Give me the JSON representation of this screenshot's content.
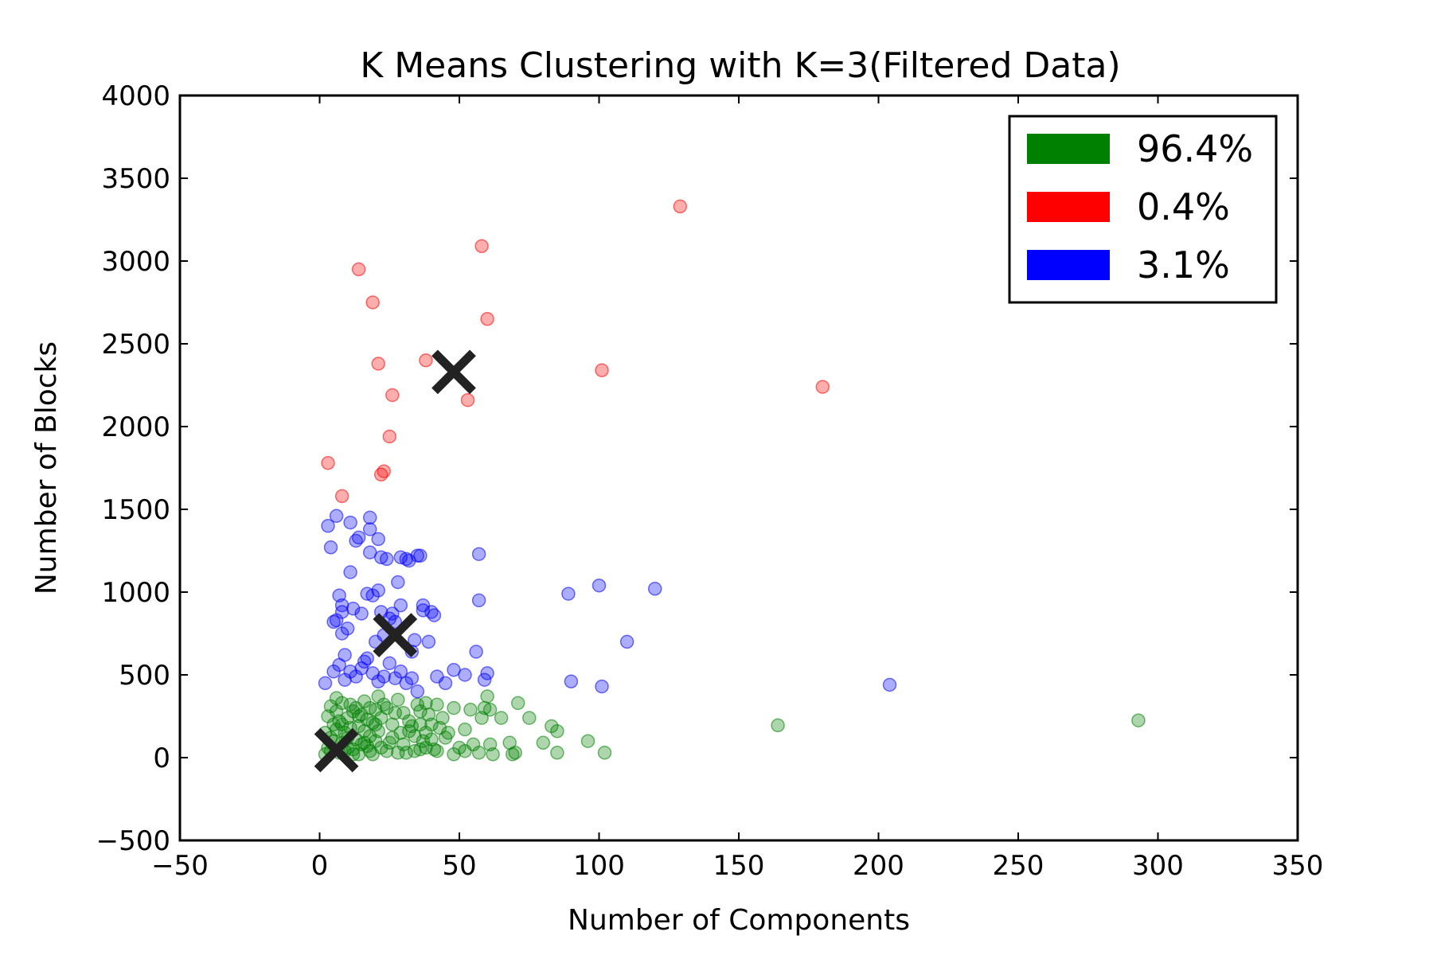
{
  "chart_data": {
    "type": "scatter",
    "title": "K Means Clustering with K=3(Filtered Data)",
    "xlabel": "Number of Components",
    "ylabel": "Number of Blocks",
    "xlim": [
      -50,
      350
    ],
    "ylim": [
      -500,
      4000
    ],
    "xticks": [
      -50,
      0,
      50,
      100,
      150,
      200,
      250,
      300,
      350
    ],
    "yticks": [
      -500,
      0,
      500,
      1000,
      1500,
      2000,
      2500,
      3000,
      3500,
      4000
    ],
    "xtick_labels": [
      "−50",
      "0",
      "50",
      "100",
      "150",
      "200",
      "250",
      "300",
      "350"
    ],
    "ytick_labels": [
      "−500",
      "0",
      "500",
      "1000",
      "1500",
      "2000",
      "2500",
      "3000",
      "3500",
      "4000"
    ],
    "grid": false,
    "legend_position": "top-right",
    "legend": [
      {
        "label": "96.4%",
        "color": "#008000"
      },
      {
        "label": "0.4%",
        "color": "#ff0000"
      },
      {
        "label": "3.1%",
        "color": "#0000ff"
      }
    ],
    "series": [
      {
        "color": "#008000",
        "points": [
          [
            2,
            20
          ],
          [
            3,
            60
          ],
          [
            4,
            120
          ],
          [
            5,
            200
          ],
          [
            6,
            280
          ],
          [
            7,
            30
          ],
          [
            8,
            90
          ],
          [
            9,
            150
          ],
          [
            10,
            240
          ],
          [
            11,
            320
          ],
          [
            12,
            50
          ],
          [
            13,
            110
          ],
          [
            14,
            190
          ],
          [
            15,
            260
          ],
          [
            16,
            340
          ],
          [
            17,
            70
          ],
          [
            18,
            130
          ],
          [
            19,
            210
          ],
          [
            20,
            290
          ],
          [
            21,
            370
          ],
          [
            3,
            250
          ],
          [
            4,
            310
          ],
          [
            6,
            170
          ],
          [
            8,
            330
          ],
          [
            10,
            60
          ],
          [
            12,
            280
          ],
          [
            14,
            20
          ],
          [
            16,
            160
          ],
          [
            18,
            300
          ],
          [
            20,
            100
          ],
          [
            22,
            240
          ],
          [
            24,
            40
          ],
          [
            26,
            200
          ],
          [
            28,
            350
          ],
          [
            30,
            80
          ],
          [
            32,
            220
          ],
          [
            34,
            130
          ],
          [
            36,
            280
          ],
          [
            38,
            60
          ],
          [
            40,
            200
          ],
          [
            5,
            100
          ],
          [
            7,
            220
          ],
          [
            9,
            40
          ],
          [
            11,
            180
          ],
          [
            13,
            300
          ],
          [
            15,
            80
          ],
          [
            17,
            230
          ],
          [
            19,
            20
          ],
          [
            21,
            160
          ],
          [
            23,
            320
          ],
          [
            25,
            90
          ],
          [
            27,
            270
          ],
          [
            29,
            150
          ],
          [
            31,
            30
          ],
          [
            33,
            190
          ],
          [
            35,
            320
          ],
          [
            37,
            100
          ],
          [
            39,
            260
          ],
          [
            41,
            50
          ],
          [
            43,
            180
          ],
          [
            2,
            150
          ],
          [
            4,
            40
          ],
          [
            6,
            360
          ],
          [
            8,
            200
          ],
          [
            10,
            120
          ],
          [
            12,
            20
          ],
          [
            14,
            250
          ],
          [
            16,
            90
          ],
          [
            18,
            40
          ],
          [
            20,
            200
          ],
          [
            22,
            60
          ],
          [
            24,
            300
          ],
          [
            26,
            120
          ],
          [
            28,
            30
          ],
          [
            30,
            270
          ],
          [
            32,
            160
          ],
          [
            34,
            40
          ],
          [
            36,
            200
          ],
          [
            38,
            330
          ],
          [
            40,
            110
          ],
          [
            42,
            40
          ],
          [
            44,
            240
          ],
          [
            46,
            150
          ],
          [
            48,
            300
          ],
          [
            50,
            60
          ],
          [
            52,
            170
          ],
          [
            54,
            290
          ],
          [
            55,
            80
          ],
          [
            57,
            30
          ],
          [
            58,
            240
          ],
          [
            59,
            300
          ],
          [
            60,
            370
          ],
          [
            61,
            290
          ],
          [
            62,
            20
          ],
          [
            61,
            80
          ],
          [
            65,
            240
          ],
          [
            68,
            90
          ],
          [
            69,
            20
          ],
          [
            70,
            30
          ],
          [
            71,
            330
          ],
          [
            75,
            240
          ],
          [
            80,
            90
          ],
          [
            83,
            190
          ],
          [
            85,
            160
          ],
          [
            85,
            30
          ],
          [
            96,
            100
          ],
          [
            102,
            30
          ],
          [
            164,
            195
          ],
          [
            293,
            225
          ],
          [
            48,
            20
          ],
          [
            52,
            40
          ],
          [
            45,
            120
          ],
          [
            42,
            320
          ],
          [
            38,
            150
          ],
          [
            36,
            50
          ]
        ]
      },
      {
        "color": "#ff0000",
        "points": [
          [
            3,
            1780
          ],
          [
            8,
            1580
          ],
          [
            14,
            2950
          ],
          [
            19,
            2750
          ],
          [
            21,
            2380
          ],
          [
            22,
            1710
          ],
          [
            23,
            1730
          ],
          [
            25,
            1940
          ],
          [
            26,
            2190
          ],
          [
            38,
            2400
          ],
          [
            53,
            2160
          ],
          [
            58,
            3090
          ],
          [
            60,
            2650
          ],
          [
            101,
            2340
          ],
          [
            129,
            3330
          ],
          [
            180,
            2240
          ]
        ]
      },
      {
        "color": "#0000ff",
        "points": [
          [
            2,
            450
          ],
          [
            3,
            1400
          ],
          [
            4,
            1270
          ],
          [
            5,
            820
          ],
          [
            6,
            1460
          ],
          [
            6,
            830
          ],
          [
            7,
            980
          ],
          [
            8,
            920
          ],
          [
            8,
            880
          ],
          [
            8,
            750
          ],
          [
            9,
            620
          ],
          [
            10,
            780
          ],
          [
            11,
            1120
          ],
          [
            11,
            1420
          ],
          [
            12,
            900
          ],
          [
            13,
            1310
          ],
          [
            14,
            1330
          ],
          [
            15,
            870
          ],
          [
            16,
            580
          ],
          [
            17,
            990
          ],
          [
            18,
            1380
          ],
          [
            18,
            1450
          ],
          [
            18,
            1240
          ],
          [
            19,
            980
          ],
          [
            20,
            700
          ],
          [
            21,
            1010
          ],
          [
            21,
            1320
          ],
          [
            22,
            1210
          ],
          [
            22,
            880
          ],
          [
            23,
            740
          ],
          [
            24,
            1200
          ],
          [
            25,
            840
          ],
          [
            26,
            870
          ],
          [
            27,
            820
          ],
          [
            28,
            1060
          ],
          [
            29,
            1210
          ],
          [
            29,
            920
          ],
          [
            31,
            1200
          ],
          [
            32,
            1190
          ],
          [
            33,
            640
          ],
          [
            34,
            710
          ],
          [
            35,
            1220
          ],
          [
            36,
            1220
          ],
          [
            37,
            920
          ],
          [
            37,
            890
          ],
          [
            39,
            700
          ],
          [
            40,
            880
          ],
          [
            41,
            860
          ],
          [
            42,
            490
          ],
          [
            45,
            450
          ],
          [
            48,
            530
          ],
          [
            52,
            500
          ],
          [
            56,
            640
          ],
          [
            57,
            1230
          ],
          [
            57,
            950
          ],
          [
            59,
            470
          ],
          [
            60,
            510
          ],
          [
            89,
            990
          ],
          [
            90,
            460
          ],
          [
            100,
            1040
          ],
          [
            101,
            430
          ],
          [
            110,
            700
          ],
          [
            120,
            1020
          ],
          [
            204,
            440
          ],
          [
            5,
            520
          ],
          [
            7,
            560
          ],
          [
            9,
            470
          ],
          [
            11,
            520
          ],
          [
            13,
            490
          ],
          [
            15,
            540
          ],
          [
            17,
            600
          ],
          [
            19,
            510
          ],
          [
            21,
            460
          ],
          [
            23,
            490
          ],
          [
            25,
            570
          ],
          [
            27,
            480
          ],
          [
            29,
            520
          ],
          [
            31,
            450
          ],
          [
            33,
            480
          ],
          [
            35,
            400
          ]
        ]
      }
    ],
    "centroids": [
      [
        6,
        45
      ],
      [
        48,
        2330
      ],
      [
        27,
        740
      ]
    ],
    "centroid_color": "#222222"
  }
}
